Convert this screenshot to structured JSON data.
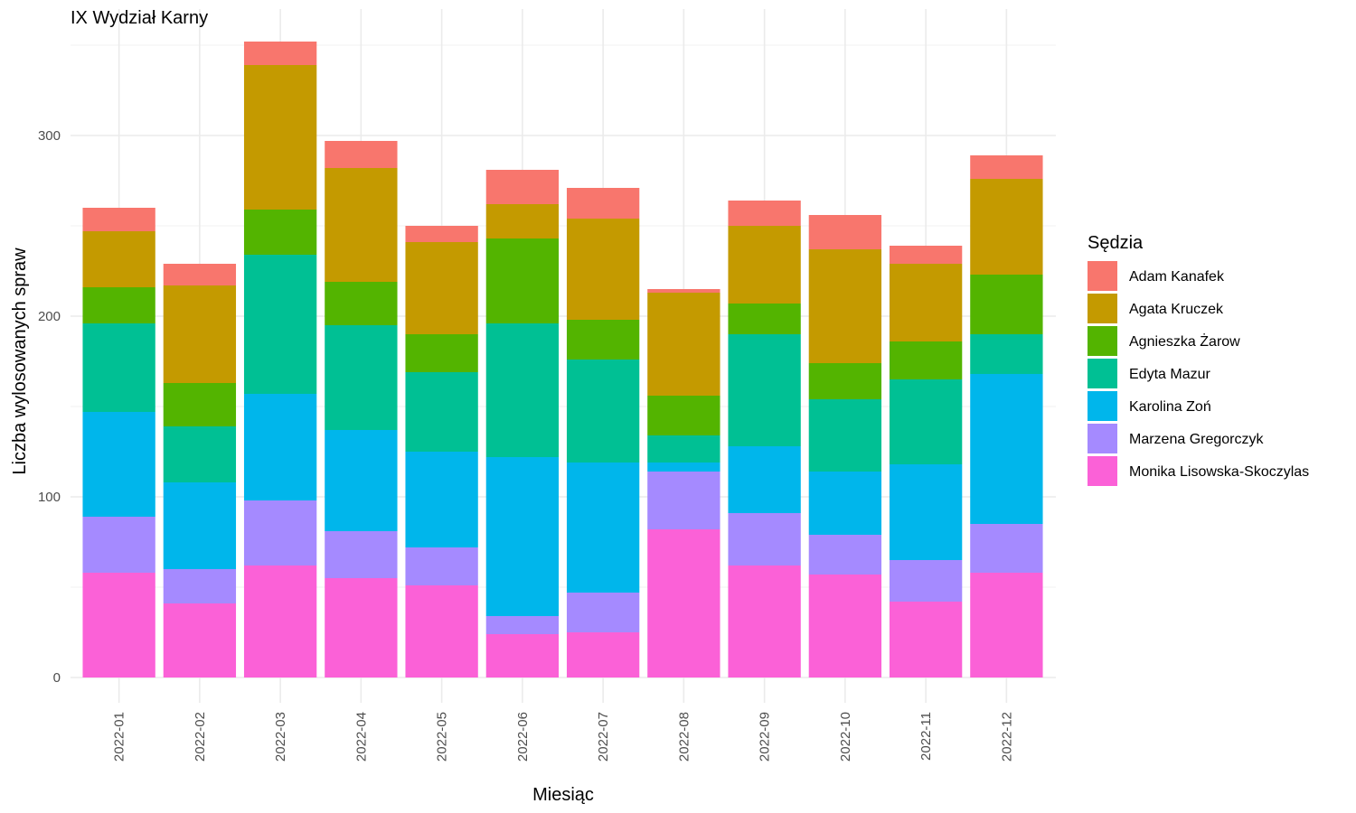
{
  "chart_data": {
    "type": "bar",
    "stacked": true,
    "title": "IX Wydział Karny",
    "xlabel": "Miesiąc",
    "ylabel": "Liczba wylosowanych spraw",
    "ylim": [
      0,
      360
    ],
    "yticks": [
      0,
      100,
      200,
      300
    ],
    "grid": true,
    "legend_position": "right",
    "legend_title": "Sędzia",
    "categories": [
      "2022-01",
      "2022-02",
      "2022-03",
      "2022-04",
      "2022-05",
      "2022-06",
      "2022-07",
      "2022-08",
      "2022-09",
      "2022-10",
      "2022-11",
      "2022-12"
    ],
    "series": [
      {
        "name": "Monika Lisowska-Skoczylas",
        "color": "#FB61D7",
        "values": [
          58,
          41,
          62,
          55,
          51,
          24,
          25,
          82,
          62,
          57,
          42,
          58
        ]
      },
      {
        "name": "Marzena Gregorczyk",
        "color": "#A58AFF",
        "values": [
          31,
          19,
          36,
          26,
          21,
          10,
          22,
          32,
          29,
          22,
          23,
          27
        ]
      },
      {
        "name": "Karolina Zoń",
        "color": "#00B6EB",
        "values": [
          58,
          48,
          59,
          56,
          53,
          88,
          72,
          5,
          37,
          35,
          53,
          83
        ]
      },
      {
        "name": "Edyta Mazur",
        "color": "#00C094",
        "values": [
          49,
          31,
          77,
          58,
          44,
          74,
          57,
          15,
          62,
          40,
          47,
          22
        ]
      },
      {
        "name": "Agnieszka Żarow",
        "color": "#53B400",
        "values": [
          20,
          24,
          25,
          24,
          21,
          47,
          22,
          22,
          17,
          20,
          21,
          33
        ]
      },
      {
        "name": "Agata Kruczek",
        "color": "#C49A00",
        "values": [
          31,
          54,
          80,
          63,
          51,
          19,
          56,
          57,
          43,
          63,
          43,
          53
        ]
      },
      {
        "name": "Adam Kanafek",
        "color": "#F8766D",
        "values": [
          13,
          12,
          13,
          15,
          9,
          19,
          17,
          2,
          14,
          19,
          10,
          13
        ]
      }
    ],
    "legend_order": [
      "Adam Kanafek",
      "Agata Kruczek",
      "Agnieszka Żarow",
      "Edyta Mazur",
      "Karolina Zoń",
      "Marzena Gregorczyk",
      "Monika Lisowska-Skoczylas"
    ]
  }
}
